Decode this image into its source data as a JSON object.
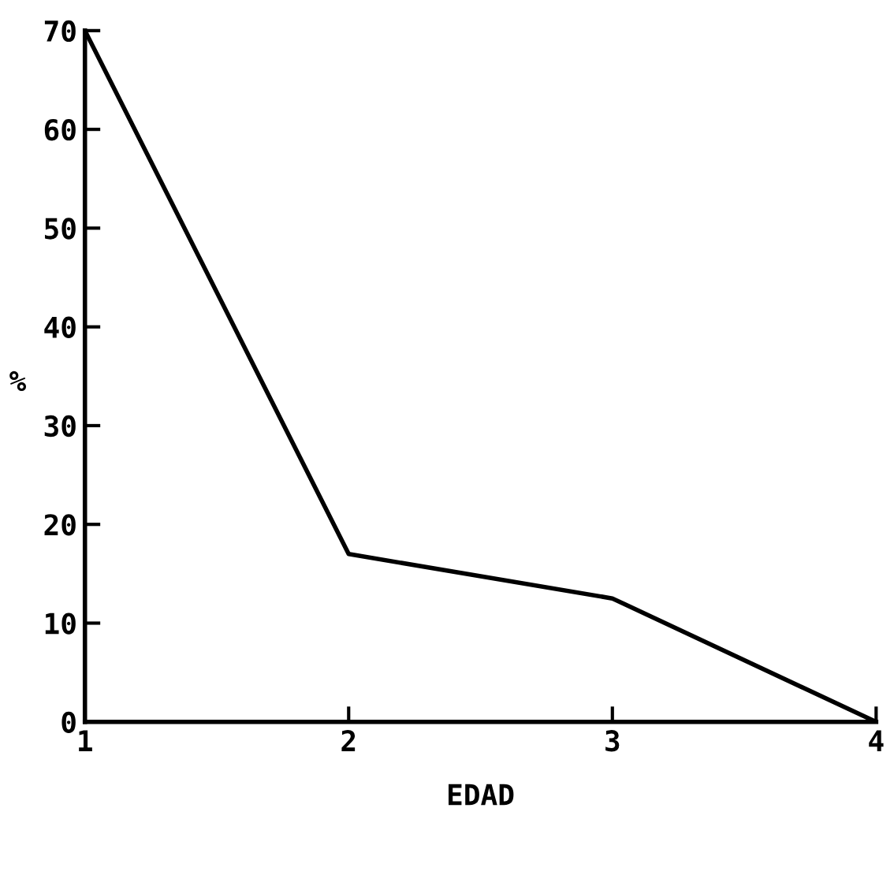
{
  "chart_data": {
    "type": "line",
    "xlabel": "EDAD",
    "ylabel": "%",
    "x": [
      1,
      2,
      3,
      4
    ],
    "series": [
      {
        "color": "#000000",
        "values": [
          70,
          17,
          12.5,
          0
        ]
      }
    ],
    "xlim": [
      1,
      4
    ],
    "xticks": [
      1,
      2,
      3,
      4
    ],
    "ylim": [
      0,
      70
    ],
    "yticks": [
      0,
      10,
      20,
      30,
      40,
      50,
      60,
      70
    ],
    "grid": false,
    "marker": "none",
    "line_style": "solid"
  }
}
